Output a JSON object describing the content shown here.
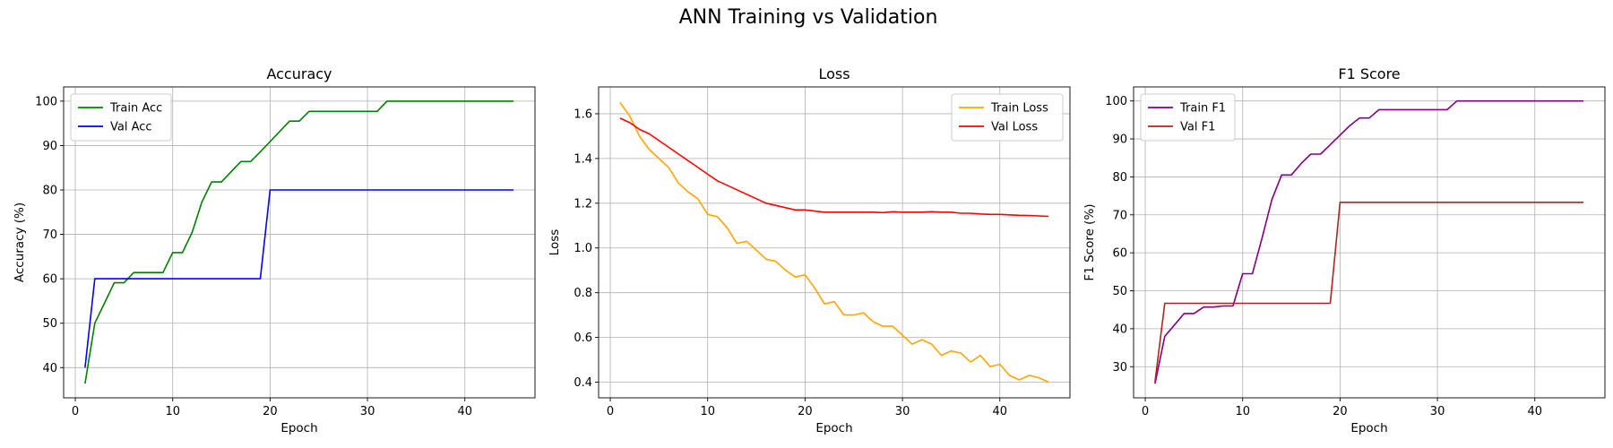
{
  "figure": {
    "suptitle": "ANN Training vs Validation"
  },
  "chart_data": [
    {
      "type": "line",
      "title": "Accuracy",
      "xlabel": "Epoch",
      "ylabel": "Accuracy (%)",
      "xlim": [
        -1.2,
        47.2
      ],
      "ylim": [
        33.2,
        103.2
      ],
      "xticks": [
        0,
        10,
        20,
        30,
        40
      ],
      "yticks": [
        40,
        50,
        60,
        70,
        80,
        90,
        100
      ],
      "grid": true,
      "legend_position": "upper-left",
      "series": [
        {
          "name": "Train Acc",
          "color": "#008000",
          "x": [
            1,
            2,
            3,
            4,
            5,
            6,
            7,
            8,
            9,
            10,
            11,
            12,
            13,
            14,
            15,
            16,
            17,
            18,
            19,
            20,
            21,
            22,
            23,
            24,
            25,
            26,
            27,
            28,
            29,
            30,
            31,
            32,
            33,
            34,
            35,
            36,
            37,
            38,
            39,
            40,
            41,
            42,
            43,
            44,
            45
          ],
          "y": [
            36.4,
            50,
            54.5,
            59.1,
            59.1,
            61.4,
            61.4,
            61.4,
            61.4,
            65.9,
            65.9,
            70.5,
            77.3,
            81.8,
            81.8,
            84.1,
            86.4,
            86.4,
            88.6,
            90.9,
            93.2,
            95.5,
            95.5,
            97.7,
            97.7,
            97.7,
            97.7,
            97.7,
            97.7,
            97.7,
            97.7,
            100,
            100,
            100,
            100,
            100,
            100,
            100,
            100,
            100,
            100,
            100,
            100,
            100,
            100
          ]
        },
        {
          "name": "Val Acc",
          "color": "#0000ff",
          "x": [
            1,
            2,
            3,
            4,
            5,
            6,
            7,
            8,
            9,
            10,
            11,
            12,
            13,
            14,
            15,
            16,
            17,
            18,
            19,
            20,
            21,
            22,
            23,
            24,
            25,
            26,
            27,
            28,
            29,
            30,
            31,
            32,
            33,
            34,
            35,
            36,
            37,
            38,
            39,
            40,
            41,
            42,
            43,
            44,
            45
          ],
          "y": [
            40,
            60,
            60,
            60,
            60,
            60,
            60,
            60,
            60,
            60,
            60,
            60,
            60,
            60,
            60,
            60,
            60,
            60,
            60,
            80,
            80,
            80,
            80,
            80,
            80,
            80,
            80,
            80,
            80,
            80,
            80,
            80,
            80,
            80,
            80,
            80,
            80,
            80,
            80,
            80,
            80,
            80,
            80,
            80,
            80
          ]
        }
      ]
    },
    {
      "type": "line",
      "title": "Loss",
      "xlabel": "Epoch",
      "ylabel": "Loss",
      "xlim": [
        -1.2,
        47.2
      ],
      "ylim": [
        0.33,
        1.72
      ],
      "xticks": [
        0,
        10,
        20,
        30,
        40
      ],
      "yticks": [
        0.4,
        0.6,
        0.8,
        1.0,
        1.2,
        1.4,
        1.6
      ],
      "ytick_labels": [
        "0.4",
        "0.6",
        "0.8",
        "1.0",
        "1.2",
        "1.4",
        "1.6"
      ],
      "grid": true,
      "legend_position": "upper-right",
      "series": [
        {
          "name": "Train Loss",
          "color": "#ffa500",
          "x": [
            1,
            2,
            3,
            4,
            5,
            6,
            7,
            8,
            9,
            10,
            11,
            12,
            13,
            14,
            15,
            16,
            17,
            18,
            19,
            20,
            21,
            22,
            23,
            24,
            25,
            26,
            27,
            28,
            29,
            30,
            31,
            32,
            33,
            34,
            35,
            36,
            37,
            38,
            39,
            40,
            41,
            42,
            43,
            44,
            45
          ],
          "y": [
            1.65,
            1.59,
            1.5,
            1.44,
            1.4,
            1.36,
            1.29,
            1.25,
            1.22,
            1.15,
            1.14,
            1.09,
            1.02,
            1.03,
            0.99,
            0.95,
            0.94,
            0.9,
            0.87,
            0.88,
            0.82,
            0.75,
            0.76,
            0.7,
            0.7,
            0.71,
            0.67,
            0.65,
            0.65,
            0.61,
            0.57,
            0.59,
            0.57,
            0.52,
            0.54,
            0.53,
            0.49,
            0.52,
            0.47,
            0.48,
            0.43,
            0.41,
            0.43,
            0.42,
            0.4
          ]
        },
        {
          "name": "Val Loss",
          "color": "#ff0000",
          "x": [
            1,
            2,
            3,
            4,
            5,
            6,
            7,
            8,
            9,
            10,
            11,
            12,
            13,
            14,
            15,
            16,
            17,
            18,
            19,
            20,
            21,
            22,
            23,
            24,
            25,
            26,
            27,
            28,
            29,
            30,
            31,
            32,
            33,
            34,
            35,
            36,
            37,
            38,
            39,
            40,
            41,
            42,
            43,
            44,
            45
          ],
          "y": [
            1.58,
            1.56,
            1.53,
            1.51,
            1.48,
            1.45,
            1.42,
            1.39,
            1.36,
            1.33,
            1.3,
            1.28,
            1.26,
            1.24,
            1.22,
            1.2,
            1.19,
            1.18,
            1.17,
            1.17,
            1.165,
            1.16,
            1.16,
            1.16,
            1.16,
            1.16,
            1.16,
            1.158,
            1.162,
            1.16,
            1.16,
            1.16,
            1.162,
            1.16,
            1.16,
            1.155,
            1.155,
            1.152,
            1.15,
            1.15,
            1.148,
            1.146,
            1.145,
            1.143,
            1.141
          ]
        }
      ]
    },
    {
      "type": "line",
      "title": "F1 Score",
      "xlabel": "Epoch",
      "ylabel": "F1 Score (%)",
      "xlim": [
        -1.2,
        47.2
      ],
      "ylim": [
        21.8,
        103.7
      ],
      "xticks": [
        0,
        10,
        20,
        30,
        40
      ],
      "yticks": [
        30,
        40,
        50,
        60,
        70,
        80,
        90,
        100
      ],
      "grid": true,
      "legend_position": "upper-left",
      "series": [
        {
          "name": "Train F1",
          "color": "#800080",
          "x": [
            1,
            2,
            3,
            4,
            5,
            6,
            7,
            8,
            9,
            10,
            11,
            12,
            13,
            14,
            15,
            16,
            17,
            18,
            19,
            20,
            21,
            22,
            23,
            24,
            25,
            26,
            27,
            28,
            29,
            30,
            31,
            32,
            33,
            34,
            35,
            36,
            37,
            38,
            39,
            40,
            41,
            42,
            43,
            44,
            45
          ],
          "y": [
            25.5,
            38,
            41,
            44,
            44,
            45.7,
            45.7,
            46,
            46,
            54.5,
            54.5,
            64,
            74,
            80.5,
            80.5,
            83.5,
            86,
            86,
            88.5,
            91,
            93.5,
            95.5,
            95.5,
            97.7,
            97.7,
            97.7,
            97.7,
            97.7,
            97.7,
            97.7,
            97.7,
            100,
            100,
            100,
            100,
            100,
            100,
            100,
            100,
            100,
            100,
            100,
            100,
            100,
            100
          ]
        },
        {
          "name": "Val F1",
          "color": "#b22222",
          "x": [
            1,
            2,
            3,
            4,
            5,
            6,
            7,
            8,
            9,
            10,
            11,
            12,
            13,
            14,
            15,
            16,
            17,
            18,
            19,
            20,
            21,
            22,
            23,
            24,
            25,
            26,
            27,
            28,
            29,
            30,
            31,
            32,
            33,
            34,
            35,
            36,
            37,
            38,
            39,
            40,
            41,
            42,
            43,
            44,
            45
          ],
          "y": [
            26,
            46.7,
            46.7,
            46.7,
            46.7,
            46.7,
            46.7,
            46.7,
            46.7,
            46.7,
            46.7,
            46.7,
            46.7,
            46.7,
            46.7,
            46.7,
            46.7,
            46.7,
            46.7,
            73.3,
            73.3,
            73.3,
            73.3,
            73.3,
            73.3,
            73.3,
            73.3,
            73.3,
            73.3,
            73.3,
            73.3,
            73.3,
            73.3,
            73.3,
            73.3,
            73.3,
            73.3,
            73.3,
            73.3,
            73.3,
            73.3,
            73.3,
            73.3,
            73.3,
            73.3
          ]
        }
      ]
    }
  ]
}
